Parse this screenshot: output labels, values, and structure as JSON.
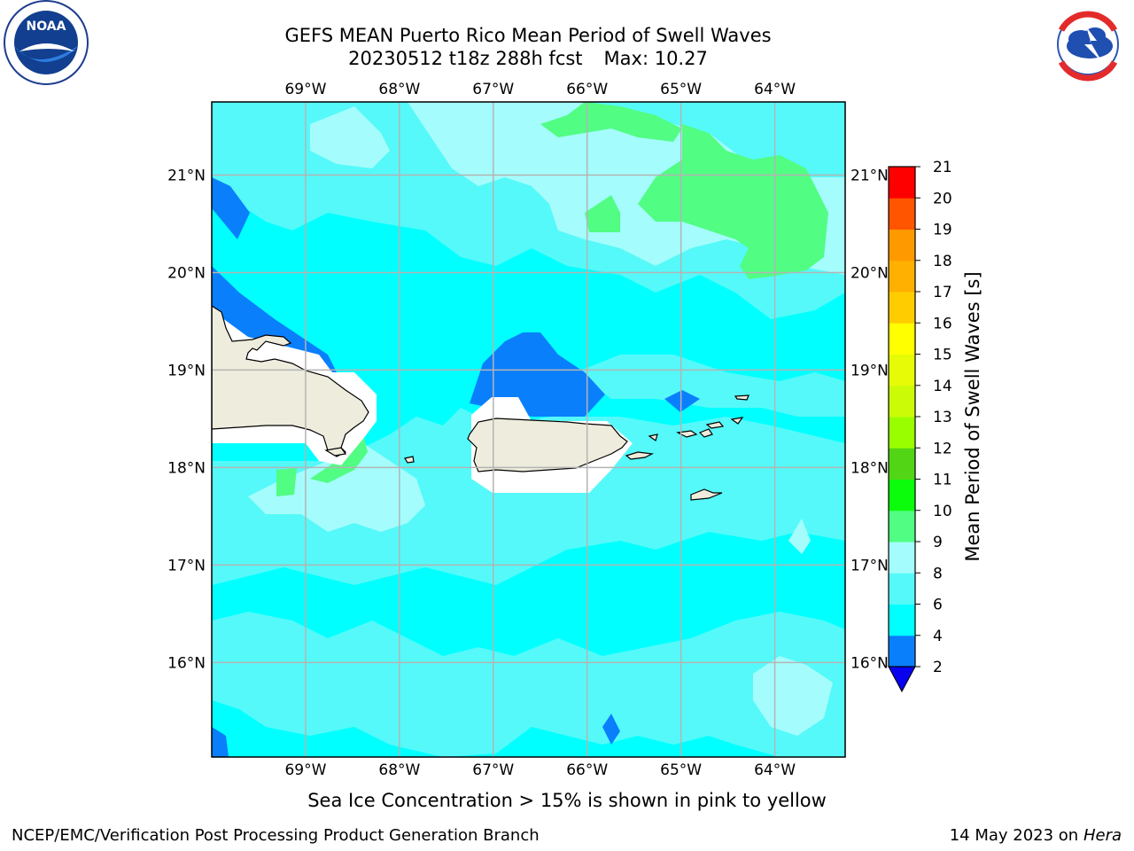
{
  "header": {
    "title_line1": "GEFS MEAN Puerto Rico Mean Period of Swell Waves",
    "title_line2_date": "20230512 t18z 288h fcst",
    "title_line2_max": "Max: 10.27"
  },
  "logos": {
    "left": "noaa-logo",
    "right": "nws-logo"
  },
  "map": {
    "projection": "equirectangular",
    "lon_labels": [
      "69°W",
      "68°W",
      "67°W",
      "66°W",
      "65°W",
      "64°W"
    ],
    "lat_labels": [
      "21°N",
      "20°N",
      "19°N",
      "18°N",
      "17°N",
      "16°N"
    ],
    "lon_ticks": [
      -69,
      -68,
      -67,
      -66,
      -65,
      -64
    ],
    "lat_ticks": [
      21,
      20,
      19,
      18,
      17,
      16
    ],
    "grid": true,
    "land_color": "#eeecdc",
    "nodata_color": "#ffffff"
  },
  "colorbar": {
    "title": "Mean Period of Swell Waves [s]",
    "levels": [
      "2",
      "4",
      "6",
      "8",
      "9",
      "10",
      "11",
      "12",
      "13",
      "14",
      "15",
      "16",
      "17",
      "18",
      "19",
      "20",
      "21"
    ],
    "colors": [
      "#0a7ffc",
      "#00ffff",
      "#55f9f9",
      "#a4fdfc",
      "#51fd83",
      "#0cfd0c",
      "#51d515",
      "#99ff00",
      "#ccfb08",
      "#e7fb06",
      "#ffff00",
      "#ffcc00",
      "#ffb000",
      "#ff9900",
      "#ff5500",
      "#ff0000"
    ],
    "under_color": "#0800ee"
  },
  "field_colors": {
    "c2to4": "#0a7ffc",
    "c4to6": "#00ffff",
    "c6to8": "#55f9f9",
    "c8to9": "#a4fdfc",
    "c9to10": "#51fd83"
  },
  "caption": "Sea Ice Concentration > 15% is shown in pink to yellow",
  "footer": {
    "left": "NCEP/EMC/Verification Post Processing Product Generation Branch",
    "right_date": "14 May 2023 on",
    "right_host": "Hera"
  }
}
